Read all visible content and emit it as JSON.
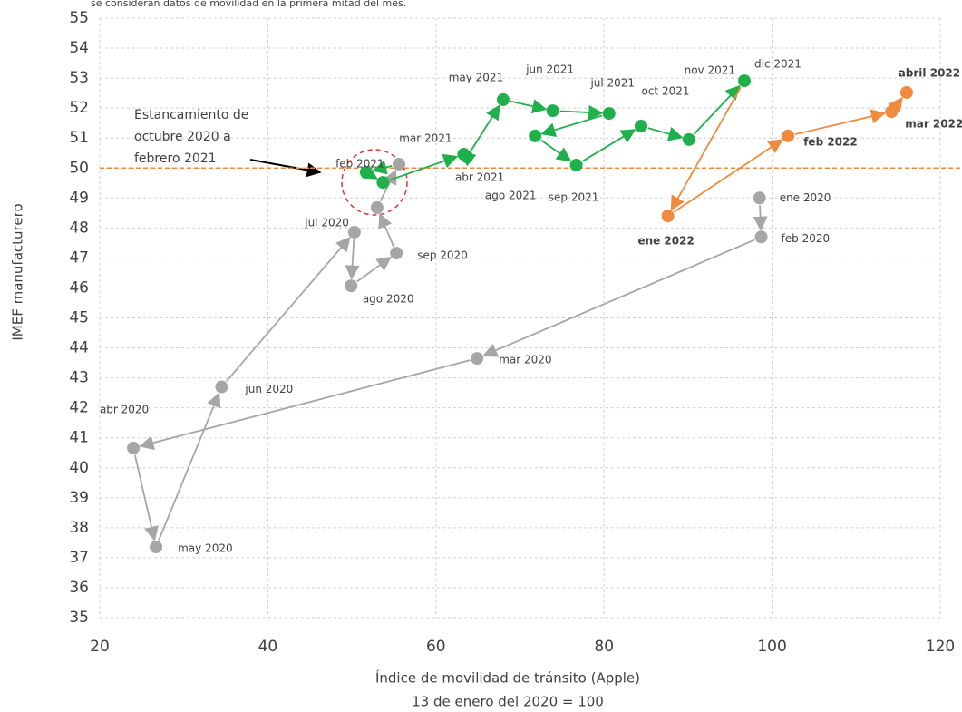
{
  "chart_data": {
    "type": "scatter",
    "note": "se consideran datos de movilidad en la primera mitad del mes.",
    "x_label": "Índice de movilidad de tránsito (Apple)",
    "x_sublabel": "13 de enero del 2020 = 100",
    "y_label": "IMEF manufacturero",
    "annotation": [
      "Estancamiento de",
      "octubre 2020 a",
      "febrero 2021"
    ],
    "reference_line": {
      "value": 50,
      "color": "#f08a3c"
    },
    "xlim": [
      20,
      120
    ],
    "xticks": [
      20,
      40,
      60,
      80,
      100,
      120
    ],
    "ylim": [
      35,
      55
    ],
    "yticks": [
      35,
      36,
      37,
      38,
      39,
      40,
      41,
      42,
      43,
      44,
      45,
      46,
      47,
      48,
      49,
      50,
      51,
      52,
      53,
      54,
      55
    ],
    "grid": true,
    "series": [
      {
        "color": "#a6a6a6",
        "bold_labels": false,
        "labels": [
          "ene 2020",
          "feb 2020",
          "mar 2020",
          "abr 2020",
          "may 2020",
          "jun 2020",
          "jul 2020",
          "ago 2020",
          "sep 2020",
          null,
          null
        ],
        "x": [
          98.5,
          98.7,
          64.9,
          24.0,
          26.7,
          34.5,
          50.3,
          49.9,
          55.3,
          53.0,
          55.6
        ],
        "values": [
          49.0,
          47.7,
          43.65,
          40.66,
          37.36,
          42.7,
          47.86,
          46.07,
          47.16,
          48.68,
          50.13
        ]
      },
      {
        "color": "#1fb04c",
        "bold_labels": false,
        "labels": [
          "feb 2021",
          null,
          "mar 2021",
          "abr 2021",
          "may 2021",
          "jun 2021",
          "jul 2021",
          "ago 2021",
          "sep 2021",
          "oct 2021",
          "nov 2021",
          "dic 2021"
        ],
        "x": [
          51.7,
          53.7,
          63.3,
          63.7,
          68.0,
          73.9,
          80.6,
          71.8,
          76.7,
          84.4,
          90.1,
          96.7
        ],
        "values": [
          49.86,
          49.52,
          50.46,
          50.37,
          52.28,
          51.91,
          51.82,
          51.07,
          50.1,
          51.4,
          50.95,
          52.91
        ]
      },
      {
        "color": "#f08a3c",
        "bold_labels": true,
        "labels": [
          "ene 2022",
          "feb 2022",
          "mar 2022",
          "abril 2022"
        ],
        "x": [
          87.6,
          101.9,
          114.2,
          116.0
        ],
        "values": [
          48.4,
          51.07,
          51.88,
          52.52
        ]
      }
    ]
  }
}
